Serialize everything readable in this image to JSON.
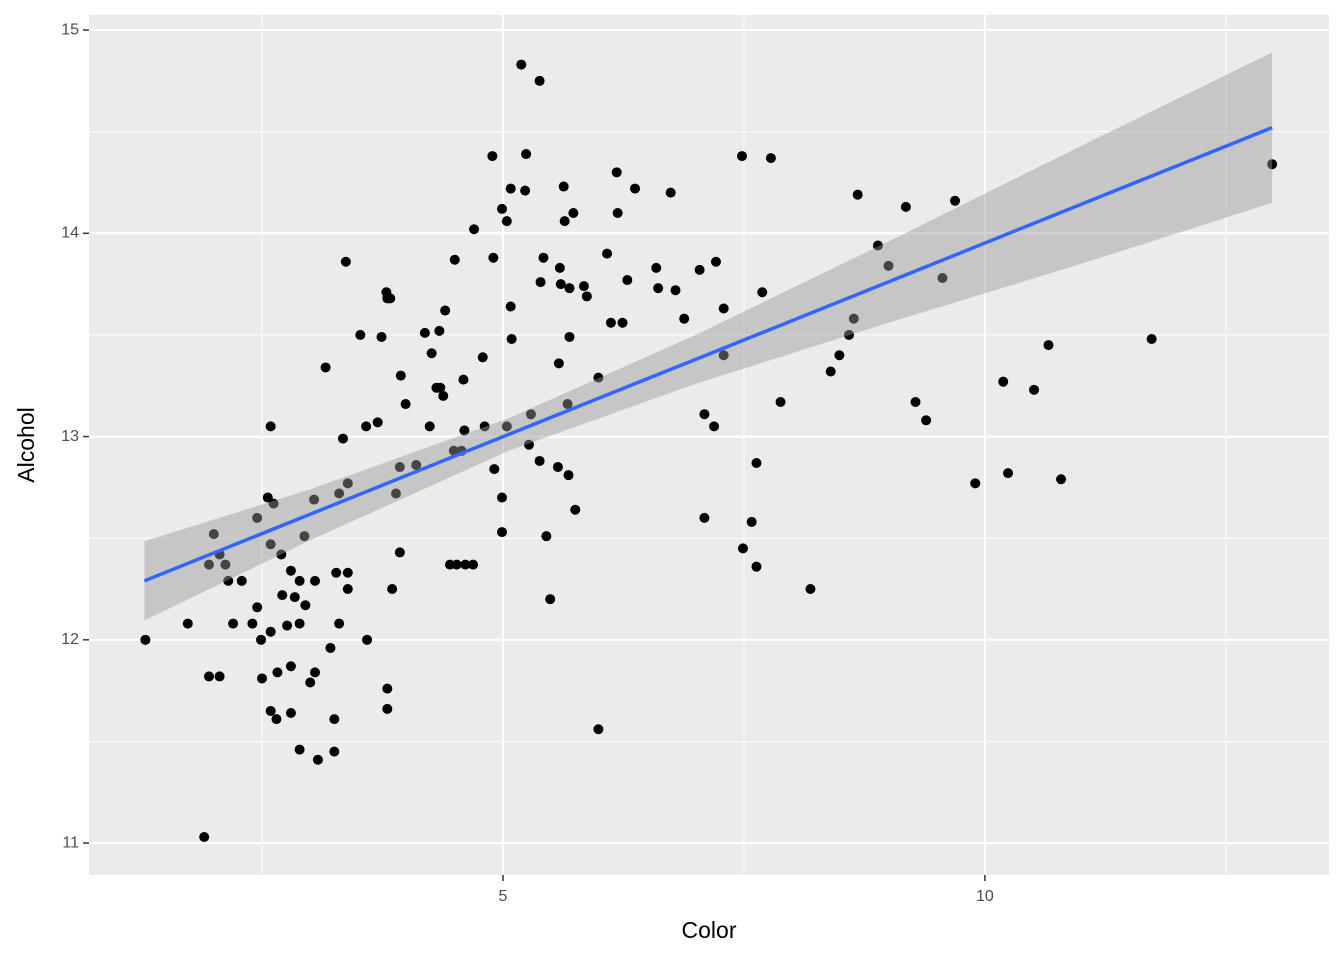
{
  "chart_data": {
    "type": "scatter",
    "xlabel": "Color",
    "ylabel": "Alcohol",
    "xlim": [
      0.705,
      13.57
    ],
    "ylim": [
      10.843,
      15.074
    ],
    "xticks": [
      5,
      10
    ],
    "yticks": [
      11,
      12,
      13,
      14,
      15
    ],
    "xminor": [
      2.5,
      7.5,
      12.5
    ],
    "yminor": [
      11.5,
      12.5,
      13.5,
      14.5
    ],
    "grid": true,
    "color": "#000000",
    "fit_color": "#3366ff",
    "band_color": "#999999",
    "x": [
      1.29,
      1.73,
      1.9,
      1.95,
      2.06,
      1.95,
      2.0,
      2.06,
      2.12,
      2.15,
      2.2,
      2.29,
      2.4,
      2.45,
      2.45,
      2.49,
      2.5,
      2.56,
      2.59,
      2.59,
      2.59,
      2.59,
      2.62,
      2.65,
      2.66,
      2.7,
      2.71,
      2.76,
      2.8,
      2.8,
      2.8,
      2.84,
      2.89,
      2.89,
      2.89,
      2.94,
      2.95,
      3.0,
      3.04,
      3.05,
      3.05,
      3.08,
      3.16,
      3.21,
      3.25,
      3.25,
      3.27,
      3.3,
      3.3,
      3.34,
      3.37,
      3.39,
      3.39,
      3.39,
      3.52,
      3.58,
      3.59,
      3.7,
      3.74,
      3.79,
      3.8,
      3.8,
      3.8,
      3.83,
      3.85,
      3.89,
      3.93,
      3.93,
      3.94,
      3.99,
      4.1,
      4.19,
      4.24,
      4.26,
      4.31,
      4.34,
      4.35,
      4.38,
      4.4,
      4.45,
      4.49,
      4.5,
      4.52,
      4.57,
      4.59,
      4.6,
      4.61,
      4.69,
      4.7,
      4.79,
      4.81,
      4.89,
      4.9,
      4.91,
      4.99,
      4.99,
      4.99,
      5.04,
      5.04,
      5.08,
      5.08,
      5.09,
      5.19,
      5.23,
      5.24,
      5.27,
      5.29,
      5.38,
      5.38,
      5.39,
      5.42,
      5.45,
      5.49,
      5.57,
      5.58,
      5.59,
      5.6,
      5.63,
      5.64,
      5.67,
      5.68,
      5.69,
      5.69,
      5.73,
      5.75,
      5.84,
      5.87,
      5.99,
      5.99,
      6.08,
      6.12,
      6.18,
      6.19,
      6.24,
      6.29,
      6.37,
      6.59,
      6.61,
      6.74,
      6.79,
      6.88,
      7.04,
      7.09,
      7.09,
      7.19,
      7.21,
      7.29,
      7.29,
      7.48,
      7.49,
      7.58,
      7.63,
      7.63,
      7.69,
      7.78,
      7.88,
      8.19,
      8.4,
      8.49,
      8.59,
      8.64,
      8.68,
      8.89,
      9.0,
      9.18,
      9.28,
      9.39,
      9.56,
      9.69,
      9.9,
      10.19,
      10.24,
      10.51,
      10.66,
      10.79,
      11.73,
      12.98
    ],
    "y": [
      12.0,
      12.08,
      11.03,
      11.82,
      11.82,
      12.37,
      12.52,
      12.42,
      12.37,
      12.29,
      12.08,
      12.29,
      12.08,
      12.6,
      12.16,
      12.0,
      11.81,
      12.7,
      13.05,
      12.47,
      12.04,
      11.65,
      12.67,
      11.61,
      11.84,
      12.42,
      12.22,
      12.07,
      12.34,
      11.87,
      11.64,
      12.21,
      12.29,
      12.08,
      11.46,
      12.51,
      12.17,
      11.79,
      12.69,
      12.29,
      11.84,
      11.41,
      13.34,
      11.96,
      11.61,
      11.45,
      12.33,
      12.08,
      12.72,
      12.99,
      13.86,
      12.77,
      12.33,
      12.25,
      13.5,
      13.05,
      12.0,
      13.07,
      13.49,
      13.71,
      13.68,
      11.76,
      11.66,
      13.68,
      12.25,
      12.72,
      12.85,
      12.43,
      13.3,
      13.16,
      12.86,
      13.51,
      13.05,
      13.41,
      13.24,
      13.52,
      13.24,
      13.2,
      13.62,
      12.37,
      12.93,
      13.87,
      12.37,
      12.93,
      13.28,
      13.03,
      12.37,
      12.37,
      14.02,
      13.39,
      13.05,
      14.38,
      13.88,
      12.84,
      12.7,
      12.53,
      14.12,
      14.06,
      13.05,
      14.22,
      13.64,
      13.48,
      14.83,
      14.21,
      14.39,
      12.96,
      13.11,
      14.75,
      12.88,
      13.76,
      13.88,
      12.51,
      12.2,
      12.85,
      13.36,
      13.83,
      13.75,
      14.23,
      14.06,
      13.16,
      12.81,
      13.73,
      13.49,
      14.1,
      12.64,
      13.74,
      13.69,
      13.29,
      11.56,
      13.9,
      13.56,
      14.3,
      14.1,
      13.56,
      13.77,
      14.22,
      13.83,
      13.73,
      14.2,
      13.72,
      13.58,
      13.82,
      13.11,
      12.6,
      13.05,
      13.86,
      13.4,
      13.63,
      14.38,
      12.45,
      12.58,
      12.87,
      12.36,
      13.71,
      14.37,
      13.17,
      12.25,
      13.32,
      13.4,
      13.5,
      13.58,
      14.19,
      13.94,
      13.84,
      14.13,
      13.17,
      13.08,
      13.78,
      14.16,
      12.77,
      13.27,
      12.82,
      13.23,
      13.45,
      12.79,
      13.48,
      14.34
    ],
    "fit": {
      "x": [
        1.28,
        3,
        5.06,
        7,
        9,
        11,
        12.98
      ],
      "y": [
        12.29,
        12.618,
        13.011,
        13.38,
        13.761,
        14.143,
        14.52
      ],
      "lower": [
        12.095,
        12.49,
        12.93,
        13.26,
        13.56,
        13.85,
        14.15
      ],
      "upper": [
        12.485,
        12.74,
        13.09,
        13.5,
        13.96,
        14.43,
        14.89
      ]
    }
  }
}
